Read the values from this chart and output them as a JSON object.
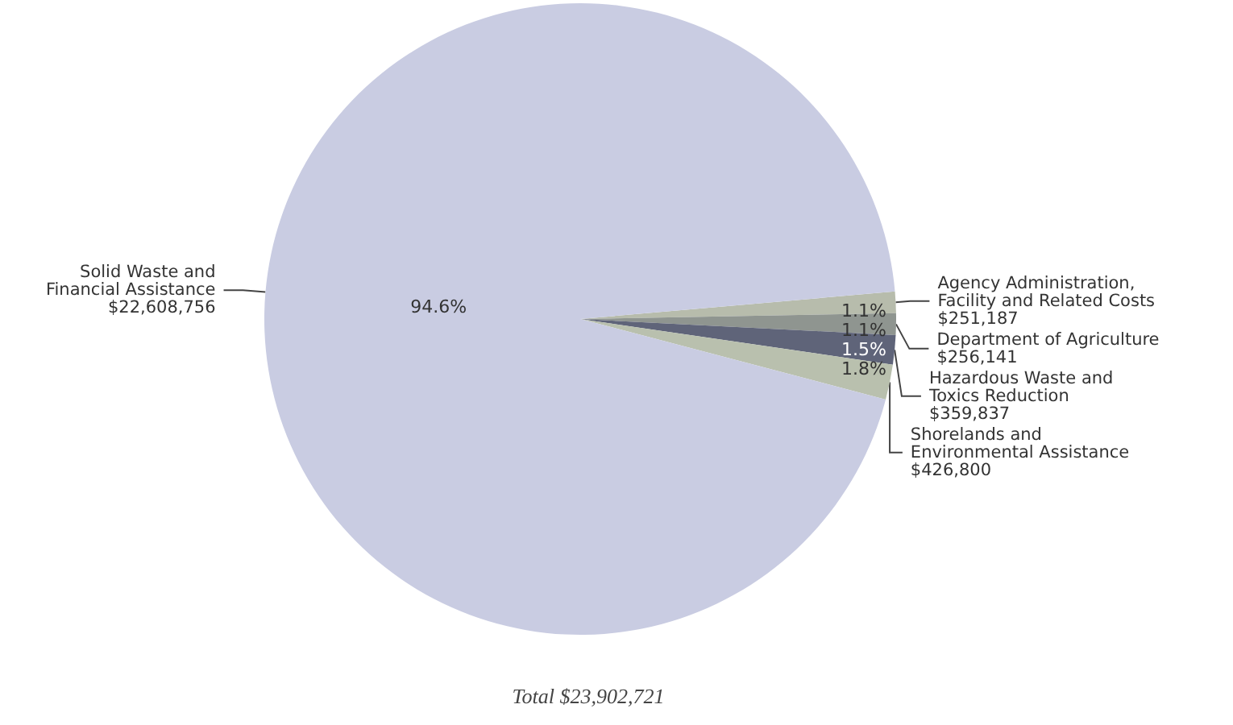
{
  "chart_data": {
    "type": "pie",
    "categories": [
      "Agency Administration,\nFacility and Related Costs\n$251,187",
      "Department of Agriculture\n$256,141",
      "Hazardous Waste and\nToxics Reduction\n$359,837",
      "Shorelands and\nEnvironmental Assistance\n$426,800",
      "Solid Waste and\nFinancial Assistance\n$22,608,756"
    ],
    "values": [
      1.1,
      1.1,
      1.5,
      1.8,
      94.6
    ],
    "value_labels": [
      "1.1%",
      "1.1%",
      "1.5%",
      "1.8%",
      "94.6%"
    ],
    "colors": [
      "#b7bcac",
      "#8f9590",
      "#5f6479",
      "#b9c0ae",
      "#c9cce2"
    ],
    "annotations": [
      "Total $23,902,721"
    ]
  }
}
